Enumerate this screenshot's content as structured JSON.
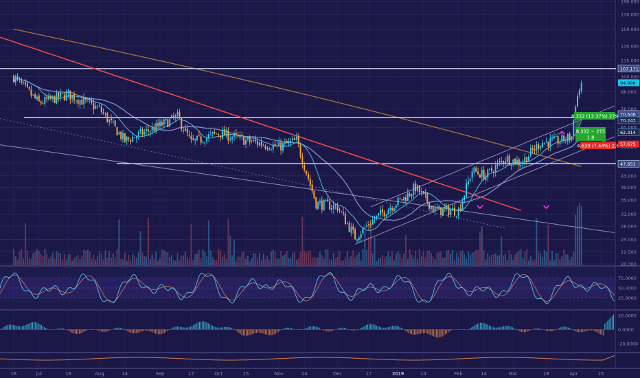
{
  "colors": {
    "background": "#1b1848",
    "panel_band": "#2e2466",
    "up": "#37c8e6",
    "down": "#f2a341",
    "volume": "#d45a6a",
    "level_line": "#c8d6f2",
    "trendline": "#e84a4a",
    "ma_slow": "#c8813a",
    "ma_mid": "#8a92d6",
    "ma_fast": "#4fb0d8",
    "macd_up": "#3bb4d6",
    "macd_down": "#d77a4a",
    "green_label": "#25a831",
    "red_label": "#e02c2c",
    "marker": "#e83ad8",
    "axis_text": "#8d8fb8"
  },
  "chart_data": [
    {
      "type": "candlestick",
      "price_axis": {
        "scale": "log",
        "range": [
          20.3,
          190
        ],
        "ticks": [
          "190.000",
          "170.000",
          "150.000",
          "130.000",
          "115.000",
          "100.000",
          "88.000",
          "76.000",
          "65.000",
          "55.000",
          "48.000",
          "43.000",
          "39.000",
          "35.000",
          "31.000",
          "28.000",
          "25.000",
          "22.500",
          "20.300"
        ]
      },
      "time_axis": {
        "ticks": [
          "18",
          "Jul",
          "16",
          "Aug",
          "14",
          "Sep",
          "17",
          "Oct",
          "15",
          "Nov",
          "14",
          "Dec",
          "17",
          "2019",
          "14",
          "Feb",
          "14",
          "Mar",
          "18",
          "Apr",
          "15"
        ]
      },
      "price_path_approx": [
        {
          "date": "2018-06-18",
          "close": 100
        },
        {
          "date": "2018-07-01",
          "close": 80
        },
        {
          "date": "2018-07-16",
          "close": 86
        },
        {
          "date": "2018-08-01",
          "close": 76
        },
        {
          "date": "2018-08-14",
          "close": 58
        },
        {
          "date": "2018-08-28",
          "close": 64
        },
        {
          "date": "2018-09-10",
          "close": 71
        },
        {
          "date": "2018-09-17",
          "close": 57
        },
        {
          "date": "2018-10-01",
          "close": 62
        },
        {
          "date": "2018-10-15",
          "close": 58
        },
        {
          "date": "2018-11-01",
          "close": 55
        },
        {
          "date": "2018-11-10",
          "close": 58
        },
        {
          "date": "2018-11-20",
          "close": 34
        },
        {
          "date": "2018-12-01",
          "close": 33
        },
        {
          "date": "2018-12-10",
          "close": 25.5
        },
        {
          "date": "2018-12-18",
          "close": 29
        },
        {
          "date": "2018-12-28",
          "close": 33
        },
        {
          "date": "2019-01-05",
          "close": 36
        },
        {
          "date": "2019-01-10",
          "close": 39
        },
        {
          "date": "2019-01-20",
          "close": 32
        },
        {
          "date": "2019-02-01",
          "close": 32
        },
        {
          "date": "2019-02-08",
          "close": 45
        },
        {
          "date": "2019-02-15",
          "close": 43
        },
        {
          "date": "2019-02-25",
          "close": 50
        },
        {
          "date": "2019-03-05",
          "close": 48
        },
        {
          "date": "2019-03-15",
          "close": 57
        },
        {
          "date": "2019-03-25",
          "close": 58
        },
        {
          "date": "2019-03-31",
          "close": 60
        },
        {
          "date": "2019-04-02",
          "close": 80
        },
        {
          "date": "2019-04-05",
          "close": 95
        }
      ],
      "horizontal_levels": [
        107.171,
        70.646,
        47.651
      ],
      "price_labels": [
        {
          "text": "107.171",
          "kind": "level"
        },
        {
          "text": "94.998",
          "kind": "last"
        },
        {
          "text": "70.646",
          "kind": "level"
        },
        {
          "text": "70.243",
          "kind": "price"
        },
        {
          "text": "62.314",
          "kind": "price"
        },
        {
          "text": "57.675",
          "kind": "red"
        },
        {
          "text": "47.651",
          "kind": "level"
        }
      ],
      "annotations": [
        {
          "text": "8.332 (13.37%) 279",
          "color": "green"
        },
        {
          "text": "8.332 ~ 215",
          "color": "green"
        },
        {
          "text": "1.8",
          "color": "green"
        },
        {
          "text": "4.639 (7.44%) 2.6",
          "color": "red"
        }
      ]
    },
    {
      "type": "line",
      "name": "oscillator",
      "y_ticks": [
        "75.0000",
        "50.0000",
        "25.0000"
      ],
      "range": [
        0,
        100
      ]
    },
    {
      "type": "bar",
      "name": "histogram",
      "y_ticks": [
        "20.0000",
        "0.0000",
        "-20.0000"
      ],
      "range": [
        -30,
        25
      ]
    }
  ]
}
